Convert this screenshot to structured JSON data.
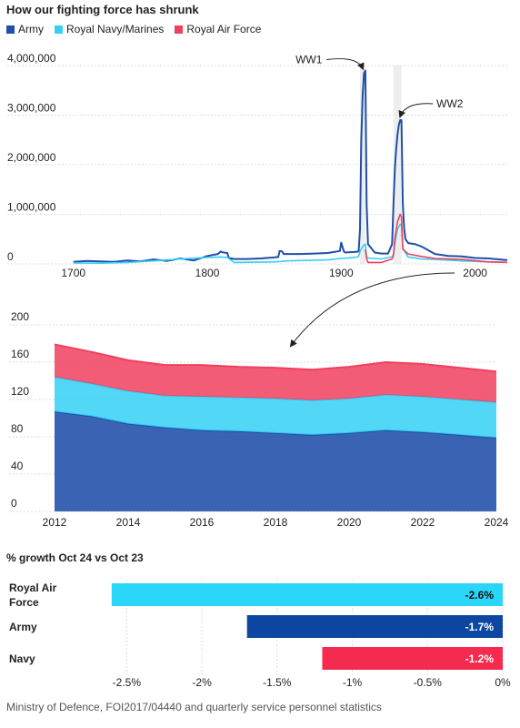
{
  "header": {
    "title": "How our fighting force has shrunk",
    "source": "Ministry of Defence, FOI2017/04440 and quarterly service personnel statistics"
  },
  "colors": {
    "army": "#1f4fa8",
    "navy": "#35d0f5",
    "raf": "#f0405e",
    "bar_navy": "#2ad6f7",
    "bar_army": "#0d47a1",
    "bar_raf": "#f42a4e"
  },
  "chart_data": [
    {
      "type": "line",
      "legend": [
        "Army",
        "Royal Navy/Marines",
        "Royal Air Force"
      ],
      "x_ticks": [
        "1700",
        "1800",
        "1900",
        "2000"
      ],
      "y_ticks": [
        "0",
        "1,000,000",
        "2,000,000",
        "3,000,000",
        "4,000,000"
      ],
      "xlim": [
        1690,
        2024
      ],
      "ylim": [
        0,
        4000000
      ],
      "annotations": [
        "WW1",
        "WW2"
      ],
      "series": [
        {
          "name": "Army",
          "color": "#1f4fa8",
          "x": [
            1700,
            1710,
            1720,
            1730,
            1740,
            1750,
            1760,
            1770,
            1780,
            1790,
            1800,
            1808,
            1810,
            1812,
            1815,
            1816,
            1820,
            1830,
            1840,
            1850,
            1853,
            1854,
            1856,
            1857,
            1860,
            1870,
            1880,
            1890,
            1899,
            1900,
            1902,
            1903,
            1910,
            1913,
            1914,
            1915,
            1916,
            1917,
            1918,
            1919,
            1920,
            1925,
            1930,
            1935,
            1938,
            1939,
            1940,
            1941,
            1942,
            1943,
            1944,
            1945,
            1946,
            1947,
            1948,
            1950,
            1955,
            1960,
            1970,
            1980,
            1990,
            2000,
            2010,
            2024
          ],
          "y": [
            40000,
            60000,
            50000,
            40000,
            70000,
            50000,
            90000,
            60000,
            110000,
            70000,
            160000,
            200000,
            250000,
            230000,
            220000,
            120000,
            100000,
            100000,
            110000,
            130000,
            140000,
            260000,
            250000,
            200000,
            200000,
            200000,
            210000,
            220000,
            260000,
            430000,
            250000,
            230000,
            240000,
            250000,
            700000,
            2500000,
            3400000,
            3850000,
            3900000,
            1200000,
            400000,
            230000,
            210000,
            210000,
            400000,
            1200000,
            1900000,
            2300000,
            2600000,
            2800000,
            2900000,
            2900000,
            1200000,
            700000,
            500000,
            420000,
            400000,
            350000,
            200000,
            160000,
            150000,
            120000,
            110000,
            75000
          ]
        },
        {
          "name": "Royal Navy/Marines",
          "color": "#35d0f5",
          "x": [
            1700,
            1720,
            1740,
            1760,
            1780,
            1800,
            1810,
            1815,
            1820,
            1850,
            1860,
            1890,
            1900,
            1910,
            1913,
            1914,
            1916,
            1918,
            1919,
            1920,
            1930,
            1939,
            1940,
            1942,
            1944,
            1945,
            1946,
            1950,
            1960,
            1970,
            1990,
            2010,
            2024
          ],
          "y": [
            20000,
            15000,
            30000,
            60000,
            100000,
            130000,
            140000,
            130000,
            30000,
            40000,
            60000,
            80000,
            110000,
            130000,
            150000,
            250000,
            350000,
            400000,
            150000,
            120000,
            100000,
            150000,
            400000,
            700000,
            800000,
            780000,
            300000,
            140000,
            100000,
            90000,
            60000,
            40000,
            32000
          ]
        },
        {
          "name": "Royal Air Force",
          "color": "#f0405e",
          "x": [
            1918,
            1919,
            1920,
            1930,
            1938,
            1939,
            1940,
            1942,
            1944,
            1945,
            1946,
            1950,
            1960,
            1970,
            1990,
            2010,
            2024
          ],
          "y": [
            290000,
            100000,
            30000,
            30000,
            100000,
            200000,
            500000,
            850000,
            1000000,
            950000,
            300000,
            200000,
            150000,
            110000,
            90000,
            40000,
            31000
          ]
        }
      ]
    },
    {
      "type": "area",
      "stacked": true,
      "x": [
        2012,
        2013,
        2014,
        2015,
        2016,
        2017,
        2018,
        2019,
        2020,
        2021,
        2022,
        2023,
        2024
      ],
      "x_ticks": [
        "2012",
        "2014",
        "2016",
        "2018",
        "2020",
        "2022",
        "2024"
      ],
      "y_ticks": [
        "0",
        "40",
        "80",
        "120",
        "160",
        "200"
      ],
      "ylim": [
        0,
        200
      ],
      "series": [
        {
          "name": "Army",
          "values": [
            107,
            102,
            94,
            90,
            87,
            86,
            84,
            82,
            84,
            87,
            85,
            82,
            79
          ]
        },
        {
          "name": "Royal Navy/Marines",
          "values": [
            37,
            35,
            35,
            34,
            36,
            36,
            37,
            37,
            37,
            38,
            38,
            38,
            38
          ]
        },
        {
          "name": "Royal Air Force",
          "values": [
            35,
            34,
            33,
            33,
            34,
            33,
            33,
            33,
            34,
            35,
            35,
            34,
            33
          ]
        }
      ]
    },
    {
      "type": "bar",
      "orientation": "horizontal",
      "title": "% growth Oct 24 vs Oct 23",
      "categories": [
        "Royal Air Force",
        "Army",
        "Navy"
      ],
      "category_lines": [
        [
          "Royal Air",
          "Force"
        ],
        [
          "Army"
        ],
        [
          "Navy"
        ]
      ],
      "values": [
        -2.6,
        -1.7,
        -1.2
      ],
      "value_labels": [
        "-2.6%",
        "-1.7%",
        "-1.2%"
      ],
      "colors": [
        "#2ad6f7",
        "#0d47a1",
        "#f42a4e"
      ],
      "label_colors": [
        "#111111",
        "#ffffff",
        "#ffffff"
      ],
      "x_ticks": [
        -2.5,
        -2,
        -1.5,
        -1,
        -0.5,
        0
      ],
      "x_tick_labels": [
        "-2.5%",
        "-2%",
        "-1.5%",
        "-1%",
        "-0.5%",
        "0%"
      ],
      "xlim": [
        -2.75,
        0
      ]
    }
  ]
}
